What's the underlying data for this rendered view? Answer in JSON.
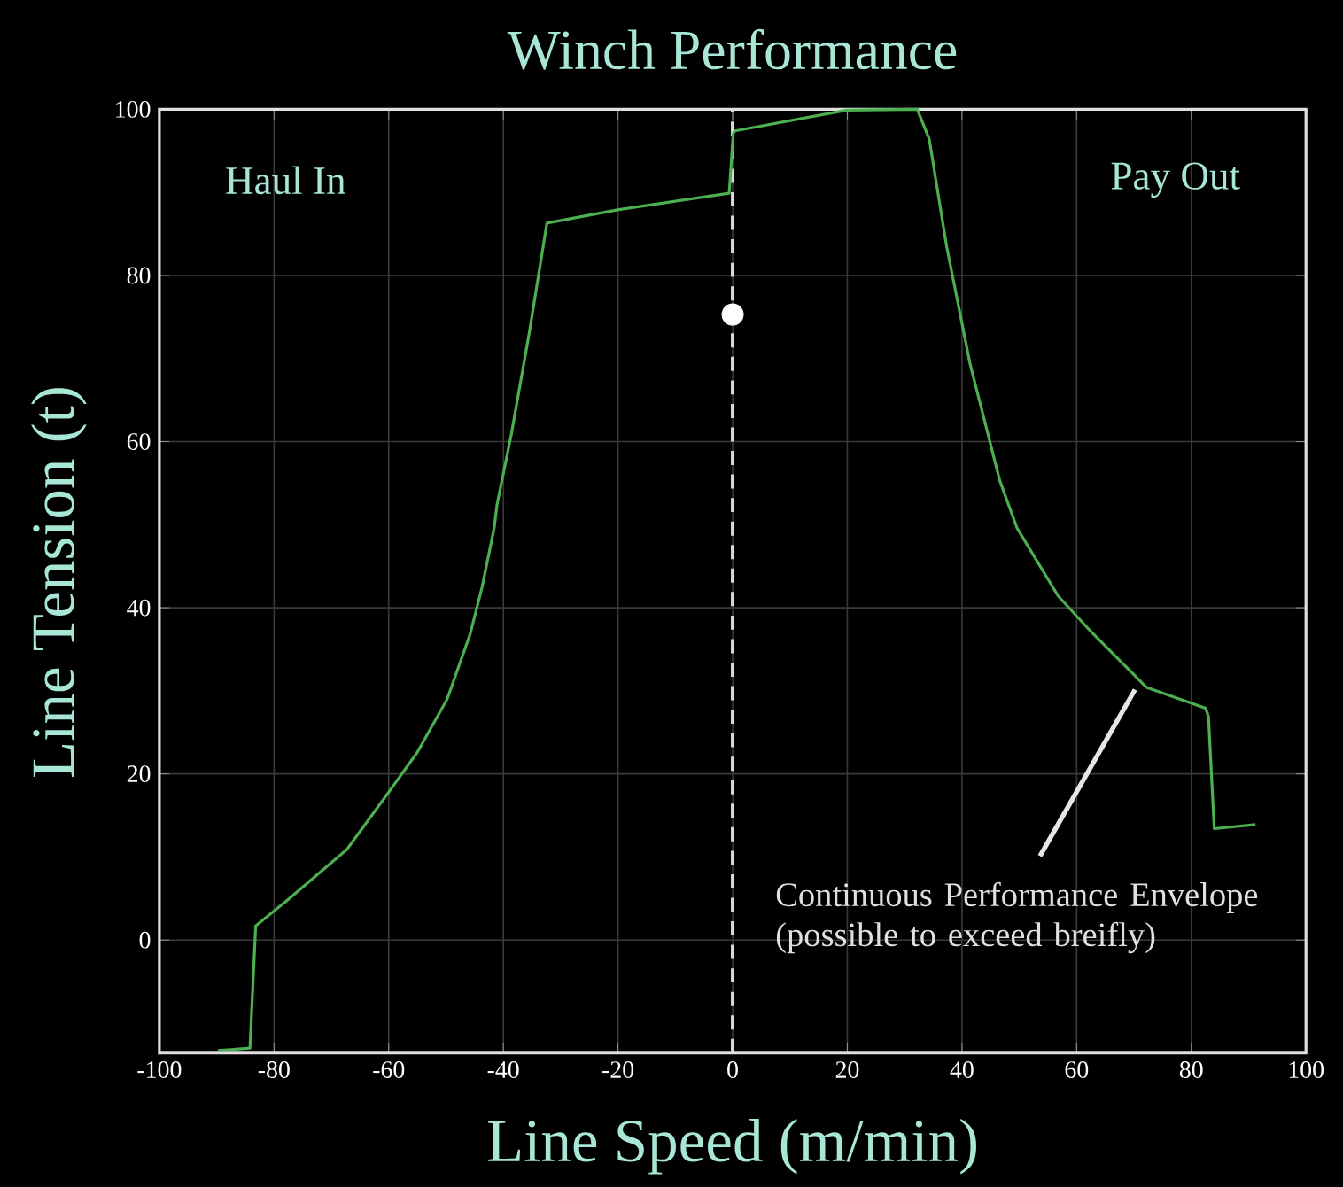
{
  "chart_data": {
    "type": "line",
    "title": "Winch Performance",
    "xlabel": "Line Speed (m/min)",
    "ylabel": "Line Tension (t)",
    "xlim": [
      -100,
      100
    ],
    "ylim": [
      -13.6,
      100
    ],
    "xticks": [
      -100,
      -80,
      -60,
      -40,
      -20,
      0,
      20,
      40,
      60,
      80,
      100
    ],
    "yticks": [
      0,
      20,
      40,
      60,
      80,
      100
    ],
    "grid": true,
    "series": [
      {
        "color": "#4caf50",
        "x": [
          -89.8,
          -84.2,
          -83.2,
          -77.5,
          -67.3,
          -60.1,
          -55,
          -49.8,
          -45.8,
          -43.7,
          -41.6,
          -41.1,
          -38.6,
          -35.5,
          -32.4,
          -20.1,
          -0.6,
          0.1,
          0.4,
          19.9,
          32.2,
          34.3,
          37.3,
          41.4,
          46.6,
          49.6,
          56.8,
          62,
          72.2,
          82.5,
          83,
          84,
          91.2
        ],
        "values": [
          -13.3,
          -13,
          1.7,
          4.9,
          10.9,
          17.7,
          22.6,
          29,
          36.8,
          42.5,
          49.6,
          52.4,
          60.9,
          73,
          86.3,
          87.9,
          89.9,
          97.1,
          97.4,
          99.9,
          100,
          96.4,
          83.6,
          69.4,
          55.3,
          49.6,
          41.4,
          37.5,
          30.4,
          27.9,
          26.9,
          13.4,
          13.9
        ]
      },
      {
        "type": "scatter",
        "color": "#ffffff",
        "marker": "circle",
        "x": [
          0
        ],
        "values": [
          75.3
        ]
      }
    ],
    "ref_lines": [
      {
        "axis": "x",
        "value": 0,
        "color": "#d9d9d9",
        "line_style": "dashed"
      }
    ],
    "annotations": [
      "Haul In",
      "Pay Out",
      {
        "text": "Continuous Performance Envelope (possible to exceed breifly)",
        "x": 71,
        "y": 31
      }
    ]
  }
}
